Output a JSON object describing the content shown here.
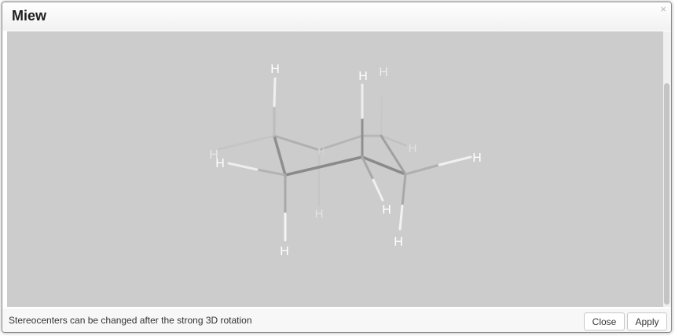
{
  "window": {
    "title": "Miew",
    "close_glyph": "×"
  },
  "viewer": {
    "background": "#cccccc",
    "atoms": {
      "h1": "H",
      "h2": "H",
      "h3": "H",
      "h4": "H",
      "h5": "H",
      "h6": "H",
      "h7": "H",
      "h8": "H",
      "h9": "H",
      "h10": "H",
      "h11": "H",
      "h12": "H"
    },
    "axes": {
      "x_color": "#e05a3a",
      "y_color": "#7ed957"
    }
  },
  "footer": {
    "hint": "Stereocenters can be changed after the strong 3D rotation",
    "close_label": "Close",
    "apply_label": "Apply"
  }
}
